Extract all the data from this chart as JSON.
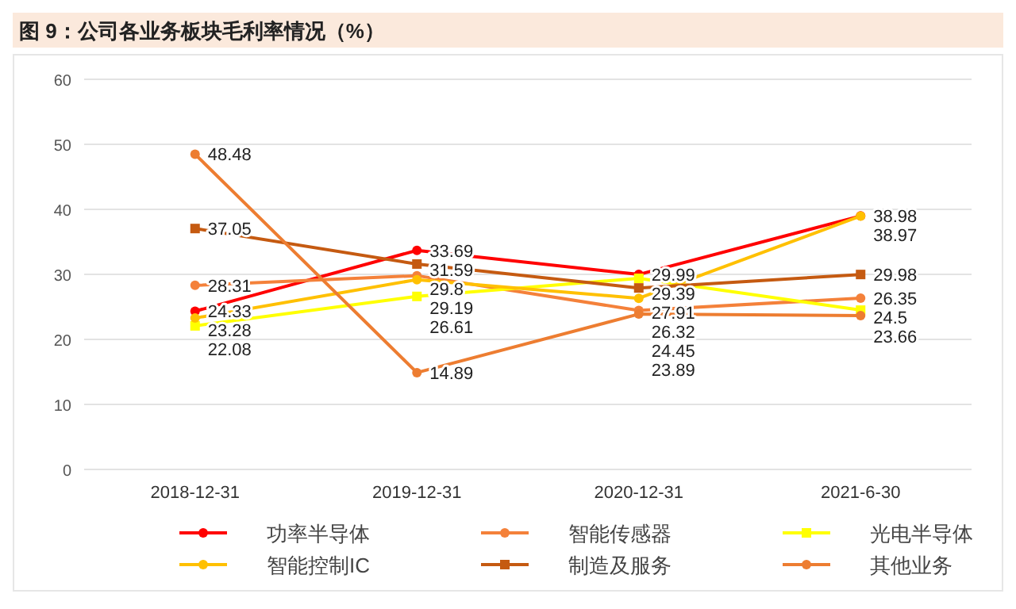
{
  "chart_data": {
    "type": "line",
    "title": "图 9：公司各业务板块毛利率情况（%）",
    "categories": [
      "2018-12-31",
      "2019-12-31",
      "2020-12-31",
      "2021-6-30"
    ],
    "series": [
      {
        "name": "功率半导体",
        "color": "#ff0000",
        "marker": "circle",
        "values": [
          24.33,
          33.69,
          29.99,
          38.98
        ]
      },
      {
        "name": "智能传感器",
        "color": "#f4813a",
        "marker": "circle",
        "values": [
          28.31,
          29.8,
          24.45,
          26.35
        ]
      },
      {
        "name": "光电半导体",
        "color": "#ffff00",
        "marker": "square",
        "values": [
          22.08,
          26.61,
          29.39,
          24.5
        ]
      },
      {
        "name": "智能控制IC",
        "color": "#ffc000",
        "marker": "circle",
        "values": [
          23.28,
          29.19,
          26.32,
          38.97
        ]
      },
      {
        "name": "制造及服务",
        "color": "#c55a11",
        "marker": "square",
        "values": [
          37.05,
          31.59,
          27.91,
          29.98
        ]
      },
      {
        "name": "其他业务",
        "color": "#ed7d31",
        "marker": "circle",
        "values": [
          48.48,
          14.89,
          23.89,
          23.66
        ]
      }
    ],
    "ylim": [
      0,
      60
    ],
    "yticks": [
      0,
      10,
      20,
      30,
      40,
      50,
      60
    ],
    "grid": "y",
    "legend": "bottom",
    "data_labels": true
  }
}
